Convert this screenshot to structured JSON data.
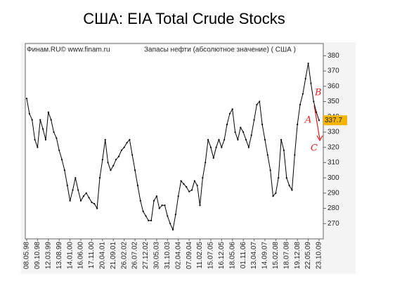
{
  "chart_data": {
    "type": "line",
    "title": "США: EIA Total Crude Stocks",
    "annotations": {
      "source": "Финам.RU© www.finam.ru",
      "subtitle": "Запасы нефти (абсолютное значение) ( США )",
      "mark_a": "A",
      "mark_b": "B",
      "mark_c": "C"
    },
    "last_value_label": "337.7",
    "categories": [
      "08.05.98",
      null,
      null,
      null,
      "09.10.98",
      null,
      null,
      null,
      "12.03.99",
      null,
      null,
      null,
      "13.08.99",
      null,
      null,
      null,
      "14.01.00",
      null,
      null,
      null,
      "16.06.00",
      null,
      null,
      null,
      "17.11.00",
      null,
      null,
      null,
      "20.04.01",
      null,
      null,
      null,
      "21.09.01",
      null,
      null,
      null,
      "26.02.02",
      null,
      null,
      null,
      "26.07.02",
      null,
      null,
      null,
      "27.12.02",
      null,
      null,
      null,
      "30.05.03",
      null,
      null,
      null,
      "31.10.03",
      null,
      null,
      null,
      "02.04.04",
      null,
      null,
      null,
      "07.09.04",
      null,
      null,
      null,
      "11.02.05",
      null,
      null,
      null,
      "15.07.05",
      null,
      null,
      null,
      "16.12.05",
      null,
      null,
      null,
      "18.05.06",
      null,
      null,
      null,
      "01.11.06",
      null,
      null,
      null,
      "13.04.07",
      null,
      null,
      null,
      "14.09.07",
      null,
      null,
      null,
      "15.02.08",
      null,
      null,
      null,
      "18.07.08",
      null,
      null,
      null,
      "19.12.08",
      null,
      null,
      null,
      "22.05.09",
      null,
      null,
      null,
      "23.10.09"
    ],
    "series": [
      {
        "name": "Запасы нефти",
        "color": "#000000",
        "values": [
          352,
          342,
          338,
          325,
          320,
          338,
          332,
          325,
          343,
          338,
          330,
          326,
          318,
          312,
          305,
          295,
          285,
          292,
          300,
          292,
          285,
          288,
          290,
          287,
          284,
          283,
          280,
          300,
          312,
          325,
          310,
          305,
          308,
          312,
          314,
          318,
          320,
          323,
          325,
          315,
          305,
          295,
          285,
          278,
          275,
          272,
          272,
          285,
          288,
          280,
          282,
          282,
          275,
          270,
          266,
          276,
          288,
          298,
          296,
          294,
          291,
          292,
          298,
          295,
          282,
          300,
          310,
          325,
          320,
          313,
          320,
          325,
          320,
          325,
          335,
          342,
          345,
          330,
          325,
          333,
          330,
          325,
          320,
          328,
          338,
          348,
          350,
          335,
          325,
          315,
          305,
          288,
          290,
          300,
          325,
          318,
          300,
          295,
          292,
          315,
          335,
          348,
          355,
          365,
          375,
          362,
          350,
          343,
          337.7
        ]
      }
    ],
    "ylim": [
      260,
      388
    ],
    "yticks": [
      270,
      280,
      290,
      300,
      310,
      320,
      330,
      340,
      350,
      360,
      370,
      380
    ],
    "grid": false
  }
}
